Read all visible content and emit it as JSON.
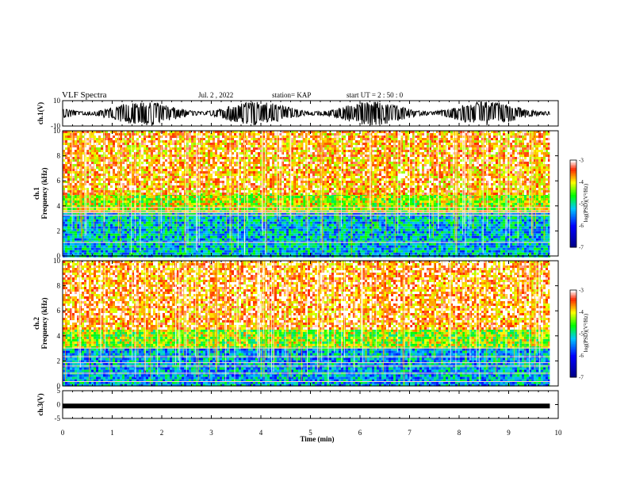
{
  "header": {
    "title": "VLF Spectra",
    "date": "Jul. 2 , 2022",
    "station": "station= KAP",
    "start": "start UT =  2 : 50 : 0"
  },
  "chart_data": [
    {
      "type": "line",
      "name": "ch1-waveform",
      "ylabel": "ch.1(V)",
      "ylim": [
        -10,
        10
      ],
      "yticks": [
        "10",
        "-10"
      ],
      "xlim": [
        0,
        10
      ],
      "data_end_min": 9.83,
      "color": "#000000"
    },
    {
      "type": "heatmap",
      "name": "ch1-spectrogram",
      "ylabel": "ch.1\nFrequency (kHz)",
      "ylim": [
        0,
        10
      ],
      "yticks": [
        "0",
        "2",
        "4",
        "6",
        "8",
        "10"
      ],
      "xlim": [
        0,
        10
      ],
      "colorbar": {
        "label": "log(PSD)(V²/Hz)",
        "ticks": [
          "-3",
          "-4",
          "-5",
          "-6",
          "-7"
        ],
        "range": [
          -7,
          -3
        ]
      },
      "bands": [
        {
          "from_khz": 0.0,
          "to_khz": 3.5,
          "level": -5.2
        },
        {
          "from_khz": 3.5,
          "to_khz": 5.0,
          "level": -4.2
        },
        {
          "from_khz": 5.0,
          "to_khz": 10.0,
          "level": -3.6
        }
      ]
    },
    {
      "type": "heatmap",
      "name": "ch2-spectrogram",
      "ylabel": "ch.2\nFrequency (kHz)",
      "ylim": [
        0,
        10
      ],
      "yticks": [
        "0",
        "2",
        "4",
        "6",
        "8",
        "10"
      ],
      "xlim": [
        0,
        10
      ],
      "colorbar": {
        "label": "log(PSD)(V²/Hz)",
        "ticks": [
          "-3",
          "-4",
          "-5",
          "-6",
          "-7"
        ],
        "range": [
          -7,
          -3
        ]
      },
      "bands": [
        {
          "from_khz": 0.0,
          "to_khz": 3.0,
          "level": -5.3
        },
        {
          "from_khz": 3.0,
          "to_khz": 4.5,
          "level": -4.3
        },
        {
          "from_khz": 4.5,
          "to_khz": 10.0,
          "level": -3.5
        }
      ]
    },
    {
      "type": "line",
      "name": "ch3-waveform",
      "ylabel": "ch.3(V)",
      "ylim": [
        -5,
        5
      ],
      "yticks": [
        "5",
        "0",
        "-5"
      ],
      "xlim": [
        0,
        10
      ],
      "data_end_min": 9.83,
      "level": -0.5,
      "color": "#000000"
    }
  ],
  "xaxis": {
    "label": "Time (min)",
    "ticks": [
      "0",
      "1",
      "2",
      "3",
      "4",
      "5",
      "6",
      "7",
      "8",
      "9",
      "10"
    ]
  }
}
